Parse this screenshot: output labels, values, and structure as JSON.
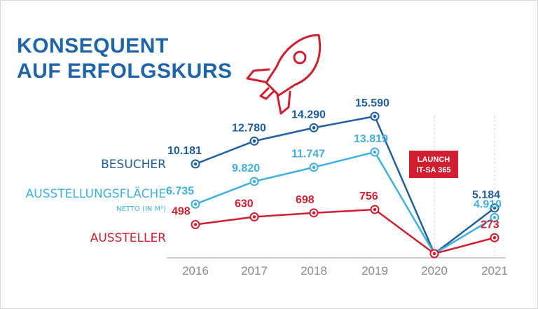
{
  "title": {
    "line1": "KONSEQUENT",
    "line2": "AUF ERFOLGSKURS"
  },
  "colors": {
    "besucher": "#1f5fa0",
    "flaeche": "#3fb0e0",
    "aussteller": "#d11f31",
    "axis": "#bdbdbd",
    "title": "#1f63a8"
  },
  "icons": [
    "rocket-icon"
  ],
  "launch": {
    "line1": "LAUNCH",
    "line2": "IT-SA 365",
    "color": "#d11f31"
  },
  "chart_data": {
    "type": "line",
    "categories": [
      "2016",
      "2017",
      "2018",
      "2019",
      "2020",
      "2021"
    ],
    "series": [
      {
        "key": "besucher",
        "name": "BESUCHER",
        "values": [
          10181,
          12780,
          14290,
          15590,
          0,
          5184
        ],
        "labels": [
          "10.181",
          "12.780",
          "14.290",
          "15.590",
          "",
          "5.184"
        ]
      },
      {
        "key": "flaeche",
        "name": "AUSSTELLUNGSFLÄCHE",
        "subname": "NETTO (IN M²)",
        "values": [
          6735,
          9820,
          11747,
          13819,
          0,
          4910
        ],
        "labels": [
          "6.735",
          "9.820",
          "11.747",
          "13.819",
          "",
          "4.910"
        ]
      },
      {
        "key": "aussteller",
        "name": "AUSSTELLER",
        "values": [
          498,
          630,
          698,
          756,
          0,
          273
        ],
        "labels": [
          "498",
          "630",
          "698",
          "756",
          "",
          "273"
        ]
      }
    ],
    "annotations": [
      "LAUNCH IT-SA 365"
    ],
    "grid": false,
    "legend": "left"
  }
}
